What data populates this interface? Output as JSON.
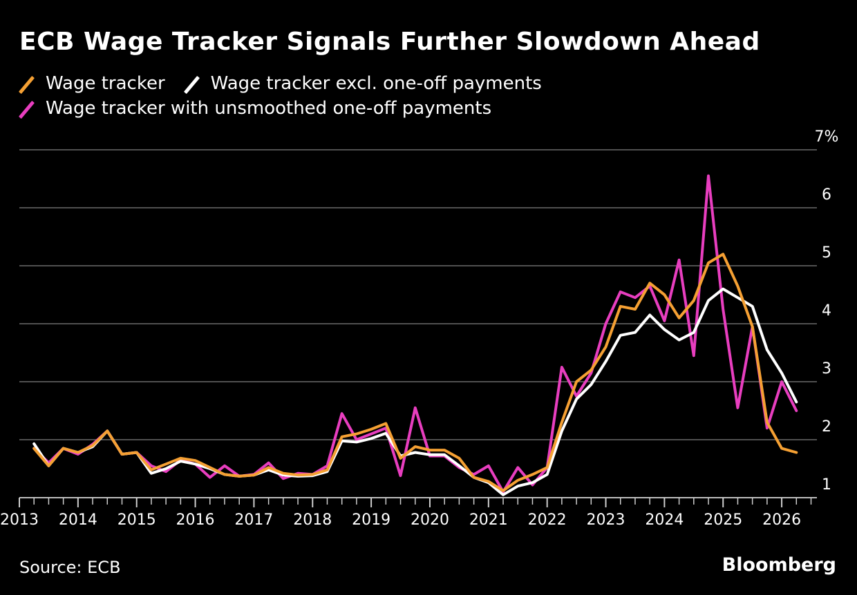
{
  "title": "ECB Wage Tracker Signals Further Slowdown Ahead",
  "source": "Source: ECB",
  "brand": "Bloomberg",
  "legend": [
    {
      "name": "Wage tracker",
      "color": "#f5a033"
    },
    {
      "name": "Wage tracker excl. one-off payments",
      "color": "#ffffff"
    },
    {
      "name": "Wage tracker with unsmoothed one-off payments",
      "color": "#e83ebf"
    }
  ],
  "chart_data": {
    "type": "line",
    "title": "ECB Wage Tracker Signals Further Slowdown Ahead",
    "xlabel": "",
    "ylabel": "",
    "y_unit_label": "7%",
    "ylim": [
      0.9,
      7
    ],
    "xlim": [
      2013,
      2026.6
    ],
    "y_ticks": [
      1,
      2,
      3,
      4,
      5,
      6,
      7
    ],
    "y_tick_labels": [
      "1",
      "2",
      "3",
      "4",
      "5",
      "6",
      "7%"
    ],
    "x_ticks": [
      2013,
      2014,
      2015,
      2016,
      2017,
      2018,
      2019,
      2020,
      2021,
      2022,
      2023,
      2024,
      2025,
      2026
    ],
    "x_tick_labels": [
      "2013",
      "2014",
      "2015",
      "2016",
      "2017",
      "2018",
      "2019",
      "2020",
      "2021",
      "2022",
      "2023",
      "2024",
      "2025",
      "2026"
    ],
    "grid": true,
    "legend_position": "top-left",
    "x": [
      2013.25,
      2013.5,
      2013.75,
      2014.0,
      2014.25,
      2014.5,
      2014.75,
      2015.0,
      2015.25,
      2015.5,
      2015.75,
      2016.0,
      2016.25,
      2016.5,
      2016.75,
      2017.0,
      2017.25,
      2017.5,
      2017.75,
      2018.0,
      2018.25,
      2018.5,
      2018.75,
      2019.0,
      2019.25,
      2019.5,
      2019.75,
      2020.0,
      2020.25,
      2020.5,
      2020.75,
      2021.0,
      2021.25,
      2021.5,
      2021.75,
      2022.0,
      2022.25,
      2022.5,
      2022.75,
      2023.0,
      2023.25,
      2023.5,
      2023.75,
      2024.0,
      2024.25,
      2024.5,
      2024.75,
      2025.0,
      2025.25,
      2025.5,
      2025.75,
      2026.0,
      2026.25
    ],
    "series": [
      {
        "name": "Wage tracker",
        "color": "#f5a033",
        "values": [
          1.85,
          1.55,
          1.85,
          1.78,
          1.9,
          2.15,
          1.75,
          1.78,
          1.48,
          1.58,
          1.68,
          1.64,
          1.52,
          1.4,
          1.37,
          1.39,
          1.52,
          1.42,
          1.39,
          1.4,
          1.48,
          2.05,
          2.1,
          2.18,
          2.28,
          1.68,
          1.88,
          1.82,
          1.82,
          1.68,
          1.35,
          1.28,
          1.12,
          1.3,
          1.4,
          1.52,
          2.3,
          3.0,
          3.2,
          3.6,
          4.3,
          4.25,
          4.7,
          4.5,
          4.1,
          4.4,
          5.05,
          5.2,
          4.65,
          3.95,
          2.3,
          1.85,
          1.78
        ]
      },
      {
        "name": "Wage tracker excl. one-off payments",
        "color": "#ffffff",
        "values": [
          1.93,
          1.55,
          1.85,
          1.78,
          1.88,
          2.15,
          1.75,
          1.78,
          1.42,
          1.5,
          1.63,
          1.58,
          1.5,
          1.4,
          1.37,
          1.39,
          1.48,
          1.39,
          1.37,
          1.38,
          1.45,
          1.98,
          1.96,
          2.02,
          2.11,
          1.72,
          1.78,
          1.74,
          1.74,
          1.55,
          1.35,
          1.26,
          1.05,
          1.2,
          1.26,
          1.4,
          2.15,
          2.7,
          2.95,
          3.35,
          3.8,
          3.85,
          4.15,
          3.9,
          3.72,
          3.85,
          4.4,
          4.6,
          4.45,
          4.3,
          3.55,
          3.15,
          2.65
        ]
      },
      {
        "name": "Wage tracker with unsmoothed one-off payments",
        "color": "#e83ebf",
        "values": [
          1.85,
          1.6,
          1.85,
          1.75,
          1.92,
          2.15,
          1.75,
          1.78,
          1.55,
          1.45,
          1.65,
          1.58,
          1.35,
          1.55,
          1.37,
          1.4,
          1.6,
          1.33,
          1.42,
          1.4,
          1.55,
          2.45,
          2.0,
          2.1,
          2.2,
          1.38,
          2.55,
          1.72,
          1.72,
          1.52,
          1.4,
          1.55,
          1.1,
          1.52,
          1.22,
          1.52,
          3.25,
          2.75,
          3.15,
          4.0,
          4.55,
          4.45,
          4.65,
          4.05,
          5.1,
          3.45,
          6.55,
          4.25,
          2.55,
          3.95,
          2.2,
          3.0,
          2.5
        ]
      }
    ]
  }
}
